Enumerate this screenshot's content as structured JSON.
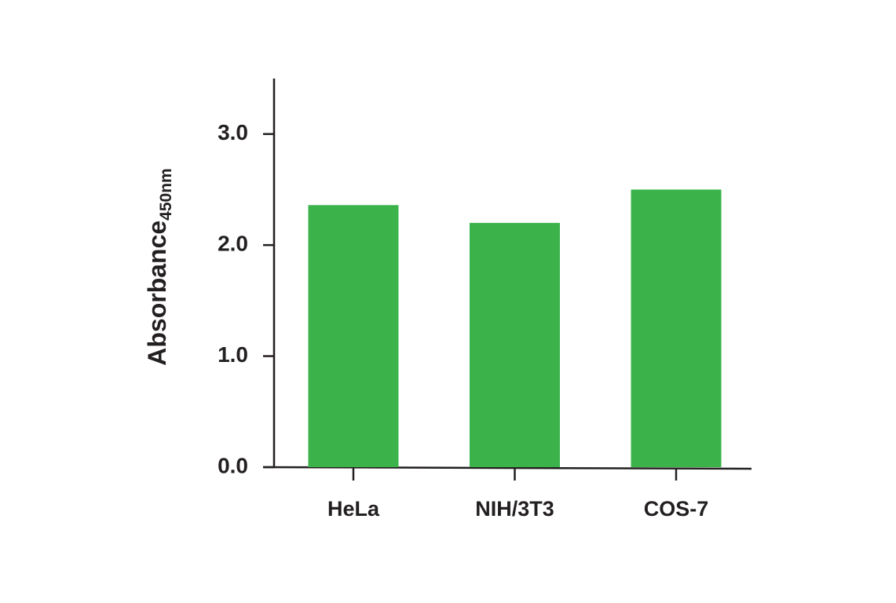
{
  "chart_data": {
    "type": "bar",
    "ylabel": "Absorbance",
    "ylabel_subscript": "450nm",
    "categories": [
      "HeLa",
      "NIH/3T3",
      "COS-7"
    ],
    "values": [
      2.36,
      2.2,
      2.5
    ],
    "color": "#3bb34a",
    "ylim": [
      0,
      3.5
    ],
    "yticks": [
      {
        "value": 0,
        "label": "0.0"
      },
      {
        "value": 1,
        "label": "1.0"
      },
      {
        "value": 2,
        "label": "2.0"
      },
      {
        "value": 3,
        "label": "3.0"
      }
    ]
  }
}
